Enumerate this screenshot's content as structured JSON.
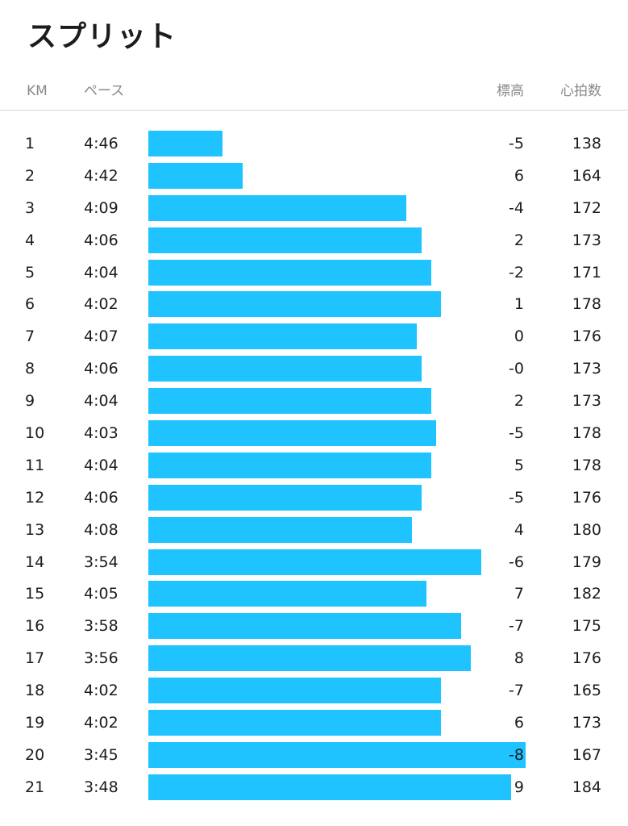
{
  "title": "スプリット",
  "header": {
    "km": "KM",
    "pace": "ペース",
    "elevation": "標高",
    "heart_rate": "心拍数"
  },
  "bar_color": "#1fc3ff",
  "splits": [
    {
      "km": "1",
      "pace": "4:46",
      "elevation": "-5",
      "heart_rate": "138"
    },
    {
      "km": "2",
      "pace": "4:42",
      "elevation": "6",
      "heart_rate": "164"
    },
    {
      "km": "3",
      "pace": "4:09",
      "elevation": "-4",
      "heart_rate": "172"
    },
    {
      "km": "4",
      "pace": "4:06",
      "elevation": "2",
      "heart_rate": "173"
    },
    {
      "km": "5",
      "pace": "4:04",
      "elevation": "-2",
      "heart_rate": "171"
    },
    {
      "km": "6",
      "pace": "4:02",
      "elevation": "1",
      "heart_rate": "178"
    },
    {
      "km": "7",
      "pace": "4:07",
      "elevation": "0",
      "heart_rate": "176"
    },
    {
      "km": "8",
      "pace": "4:06",
      "elevation": "-0",
      "heart_rate": "173"
    },
    {
      "km": "9",
      "pace": "4:04",
      "elevation": "2",
      "heart_rate": "173"
    },
    {
      "km": "10",
      "pace": "4:03",
      "elevation": "-5",
      "heart_rate": "178"
    },
    {
      "km": "11",
      "pace": "4:04",
      "elevation": "5",
      "heart_rate": "178"
    },
    {
      "km": "12",
      "pace": "4:06",
      "elevation": "-5",
      "heart_rate": "176"
    },
    {
      "km": "13",
      "pace": "4:08",
      "elevation": "4",
      "heart_rate": "180"
    },
    {
      "km": "14",
      "pace": "3:54",
      "elevation": "-6",
      "heart_rate": "179"
    },
    {
      "km": "15",
      "pace": "4:05",
      "elevation": "7",
      "heart_rate": "182"
    },
    {
      "km": "16",
      "pace": "3:58",
      "elevation": "-7",
      "heart_rate": "175"
    },
    {
      "km": "17",
      "pace": "3:56",
      "elevation": "8",
      "heart_rate": "176"
    },
    {
      "km": "18",
      "pace": "4:02",
      "elevation": "-7",
      "heart_rate": "165"
    },
    {
      "km": "19",
      "pace": "4:02",
      "elevation": "6",
      "heart_rate": "173"
    },
    {
      "km": "20",
      "pace": "3:45",
      "elevation": "-8",
      "heart_rate": "167"
    },
    {
      "km": "21",
      "pace": "3:48",
      "elevation": "9",
      "heart_rate": "184"
    }
  ]
}
